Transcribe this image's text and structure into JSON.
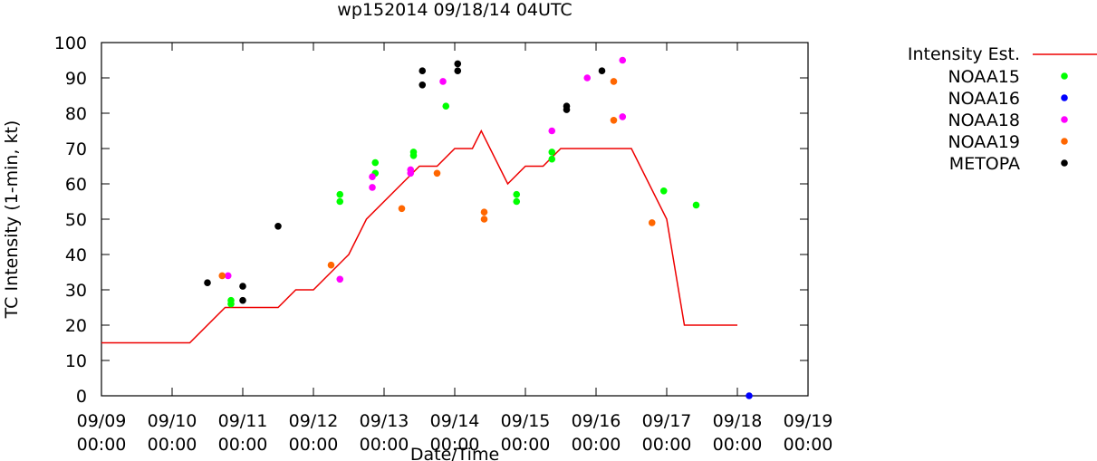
{
  "chart_data": {
    "type": "scatter",
    "title": "wp152014 09/18/14 04UTC",
    "xlabel": "Date/Time",
    "ylabel": "TC Intensity (1-min, kt)",
    "xlim": [
      "09/09 00:00",
      "09/19 00:00"
    ],
    "ylim": [
      0,
      100
    ],
    "x_ticks": [
      {
        "line1": "09/09",
        "line2": "00:00"
      },
      {
        "line1": "09/10",
        "line2": "00:00"
      },
      {
        "line1": "09/11",
        "line2": "00:00"
      },
      {
        "line1": "09/12",
        "line2": "00:00"
      },
      {
        "line1": "09/13",
        "line2": "00:00"
      },
      {
        "line1": "09/14",
        "line2": "00:00"
      },
      {
        "line1": "09/15",
        "line2": "00:00"
      },
      {
        "line1": "09/16",
        "line2": "00:00"
      },
      {
        "line1": "09/17",
        "line2": "00:00"
      },
      {
        "line1": "09/18",
        "line2": "00:00"
      },
      {
        "line1": "09/19",
        "line2": "00:00"
      }
    ],
    "y_ticks": [
      "0",
      "10",
      "20",
      "30",
      "40",
      "50",
      "60",
      "70",
      "80",
      "90",
      "100"
    ],
    "legend_position": "right",
    "line_series": {
      "name": "Intensity Est.",
      "color": "#ee0000",
      "points": [
        [
          "09/09 00:00",
          15
        ],
        [
          "09/10 06:00",
          15
        ],
        [
          "09/10 18:00",
          25
        ],
        [
          "09/11 12:00",
          25
        ],
        [
          "09/11 18:00",
          30
        ],
        [
          "09/12 00:00",
          30
        ],
        [
          "09/12 12:00",
          40
        ],
        [
          "09/12 18:00",
          50
        ],
        [
          "09/13 06:00",
          60
        ],
        [
          "09/13 12:00",
          65
        ],
        [
          "09/13 18:00",
          65
        ],
        [
          "09/14 00:00",
          70
        ],
        [
          "09/14 06:00",
          70
        ],
        [
          "09/14 09:00",
          75
        ],
        [
          "09/14 18:00",
          60
        ],
        [
          "09/15 00:00",
          65
        ],
        [
          "09/15 06:00",
          65
        ],
        [
          "09/15 12:00",
          70
        ],
        [
          "09/16 12:00",
          70
        ],
        [
          "09/17 00:00",
          50
        ],
        [
          "09/17 06:00",
          20
        ],
        [
          "09/18 00:00",
          20
        ]
      ]
    },
    "series": [
      {
        "name": "NOAA15",
        "color": "#00ff00",
        "points": [
          [
            "09/10 20:00",
            27
          ],
          [
            "09/10 20:00",
            26
          ],
          [
            "09/12 09:00",
            57
          ],
          [
            "09/12 09:00",
            55
          ],
          [
            "09/12 21:00",
            66
          ],
          [
            "09/12 21:00",
            63
          ],
          [
            "09/13 10:00",
            69
          ],
          [
            "09/13 10:00",
            68
          ],
          [
            "09/13 21:00",
            82
          ],
          [
            "09/14 21:00",
            57
          ],
          [
            "09/14 21:00",
            55
          ],
          [
            "09/15 09:00",
            69
          ],
          [
            "09/15 09:00",
            67
          ],
          [
            "09/16 23:00",
            58
          ],
          [
            "09/17 10:00",
            54
          ]
        ]
      },
      {
        "name": "NOAA16",
        "color": "#0000ff",
        "points": [
          [
            "09/18 04:00",
            0
          ]
        ]
      },
      {
        "name": "NOAA18",
        "color": "#ff00ff",
        "points": [
          [
            "09/10 19:00",
            34
          ],
          [
            "09/12 09:00",
            33
          ],
          [
            "09/12 20:00",
            62
          ],
          [
            "09/12 20:00",
            59
          ],
          [
            "09/13 09:00",
            64
          ],
          [
            "09/13 09:00",
            63
          ],
          [
            "09/13 20:00",
            89
          ],
          [
            "09/15 09:00",
            75
          ],
          [
            "09/15 21:00",
            90
          ],
          [
            "09/16 09:00",
            95
          ],
          [
            "09/16 09:00",
            79
          ]
        ]
      },
      {
        "name": "NOAA19",
        "color": "#ff6600",
        "points": [
          [
            "09/10 17:00",
            34
          ],
          [
            "09/12 06:00",
            37
          ],
          [
            "09/13 06:00",
            53
          ],
          [
            "09/13 18:00",
            63
          ],
          [
            "09/14 10:00",
            52
          ],
          [
            "09/14 10:00",
            50
          ],
          [
            "09/16 06:00",
            89
          ],
          [
            "09/16 06:00",
            78
          ],
          [
            "09/16 19:00",
            49
          ]
        ]
      },
      {
        "name": "METOPA",
        "color": "#000000",
        "points": [
          [
            "09/10 12:00",
            32
          ],
          [
            "09/11 00:00",
            31
          ],
          [
            "09/11 00:00",
            27
          ],
          [
            "09/11 12:00",
            48
          ],
          [
            "09/13 13:00",
            92
          ],
          [
            "09/13 13:00",
            88
          ],
          [
            "09/14 01:00",
            94
          ],
          [
            "09/14 01:00",
            92
          ],
          [
            "09/15 14:00",
            82
          ],
          [
            "09/15 14:00",
            81
          ],
          [
            "09/16 02:00",
            92
          ]
        ]
      }
    ]
  }
}
